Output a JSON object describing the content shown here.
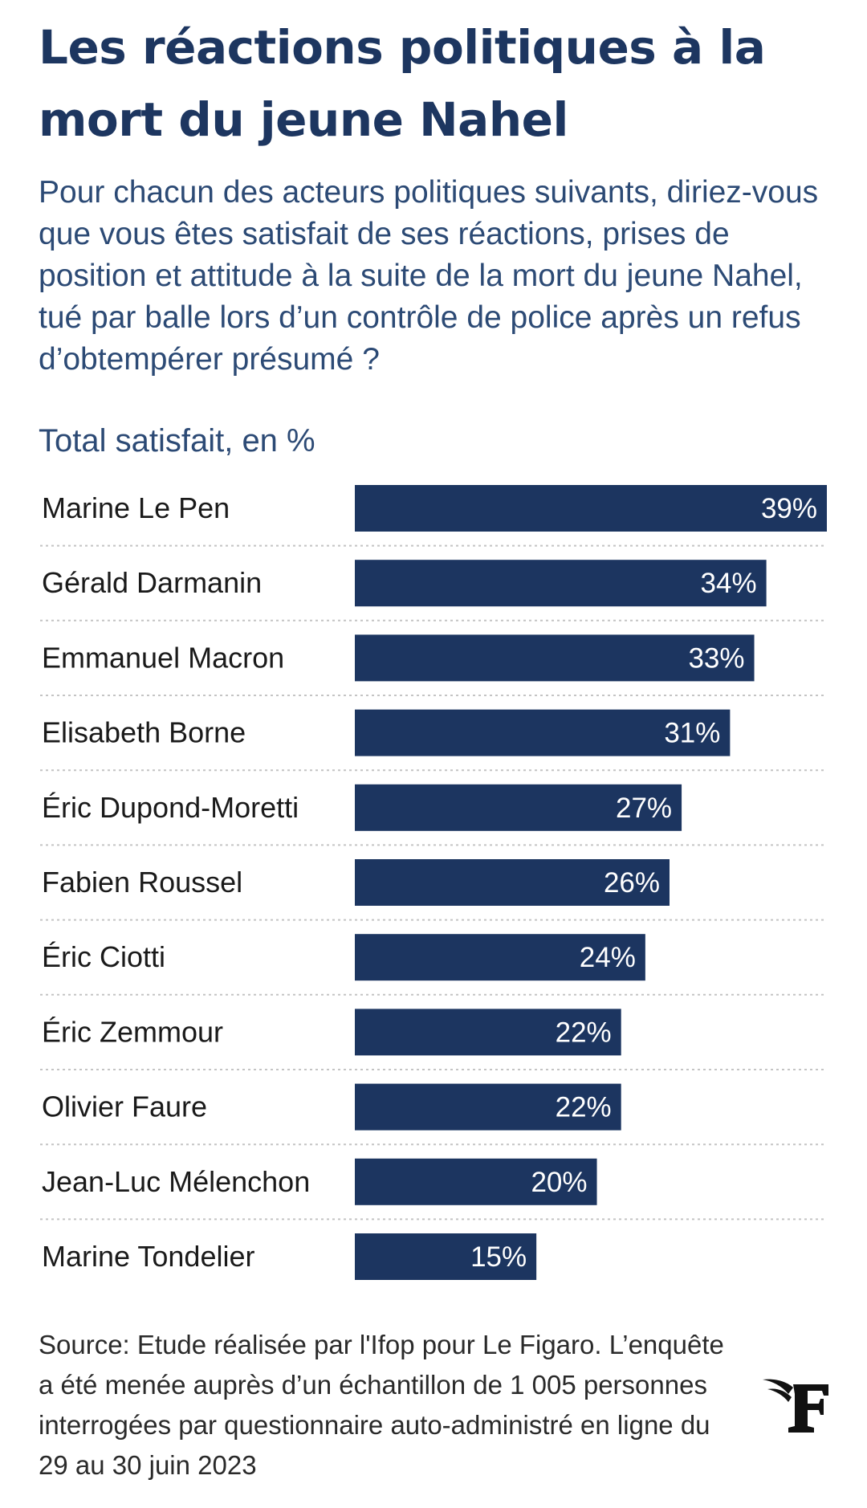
{
  "header": {
    "title": "Les réactions politiques à la mort du jeune Nahel",
    "subtitle": "Pour chacun des acteurs politiques suivants, diriez-vous que vous êtes satisfait de ses réactions, prises de position et attitude à la suite de la mort du jeune Nahel, tué par balle lors d’un contrôle de police après un refus d’obtempérer présumé ?",
    "unit_label": "Total satisfait, en %"
  },
  "chart_data": {
    "type": "bar",
    "orientation": "horizontal",
    "title": "Les réactions politiques à la mort du jeune Nahel",
    "xlabel": "Total satisfait, en %",
    "ylabel": "",
    "xlim": [
      0,
      39
    ],
    "grid": false,
    "legend": "none",
    "value_suffix": "%",
    "categories": [
      "Marine Le Pen",
      "Gérald Darmanin",
      "Emmanuel Macron",
      "Elisabeth Borne",
      "Éric Dupond-Moretti",
      "Fabien Roussel",
      "Éric Ciotti",
      "Éric Zemmour",
      "Olivier Faure",
      "Jean-Luc Mélenchon",
      "Marine Tondelier"
    ],
    "values": [
      39,
      34,
      33,
      31,
      27,
      26,
      24,
      22,
      22,
      20,
      15
    ],
    "data_labels": [
      "39%",
      "34%",
      "33%",
      "31%",
      "27%",
      "26%",
      "24%",
      "22%",
      "22%",
      "20%",
      "15%"
    ]
  },
  "footer": {
    "source": "Source: Etude réalisée par l'Ifop pour Le Figaro. L’enquête a été menée auprès d’un échantillon de 1 005 personnes interrogées par questionnaire auto-administré en ligne du 29 au 30 juin 2023",
    "logo_icon": "le-figaro-logo-icon"
  },
  "colors": {
    "bar": "#1c3560",
    "title": "#1d3660",
    "subtitle": "#2c4a75",
    "separator": "#c4c4c4"
  }
}
